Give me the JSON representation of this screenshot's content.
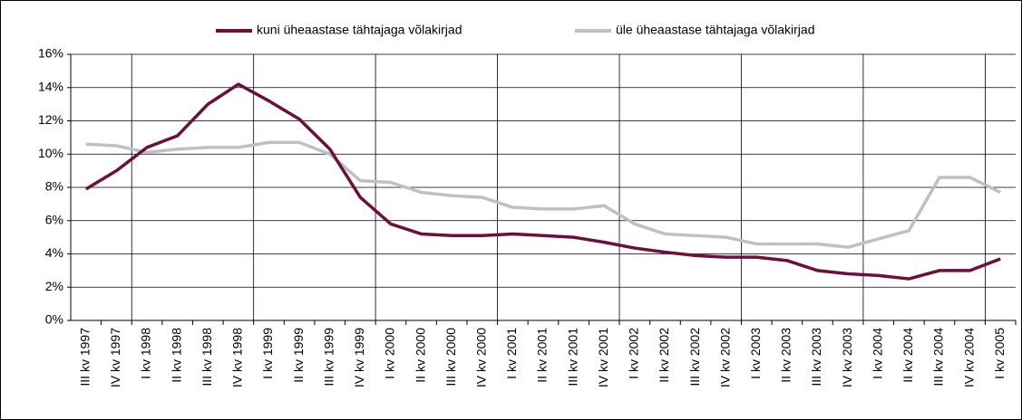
{
  "chart_data": {
    "type": "line",
    "categories": [
      "III kv 1997",
      "IV kv 1997",
      "I kv 1998",
      "II kv 1998",
      "III kv 1998",
      "IV kv 1998",
      "I kv 1999",
      "II kv 1999",
      "III kv 1999",
      "IV kv 1999",
      "I kv 2000",
      "II kv 2000",
      "III kv 2000",
      "IV kv 2000",
      "I kv 2001",
      "II kv 2001",
      "III kv 2001",
      "IV kv 2001",
      "I kv 2002",
      "II kv 2002",
      "III kv 2002",
      "IV kv 2002",
      "I kv 2003",
      "II kv 2003",
      "III kv 2003",
      "IV kv 2003",
      "I kv 2004",
      "II kv 2004",
      "III kv 2004",
      "IV kv 2004",
      "I kv 2005"
    ],
    "series": [
      {
        "name": "kuni üheaastase tähtajaga võlakirjad",
        "color": "#6d0e3b",
        "values": [
          7.9,
          9.0,
          10.4,
          11.1,
          13.0,
          14.2,
          13.2,
          12.1,
          10.3,
          7.4,
          5.8,
          5.2,
          5.1,
          5.1,
          5.2,
          5.1,
          5.0,
          4.7,
          4.35,
          4.1,
          3.9,
          3.8,
          3.8,
          3.6,
          3.0,
          2.8,
          2.7,
          2.5,
          3.0,
          3.0,
          3.7
        ]
      },
      {
        "name": "üle üheaastase tähtajaga võlakirjad",
        "color": "#c0c0c0",
        "values": [
          10.6,
          10.5,
          10.1,
          10.3,
          10.4,
          10.4,
          10.7,
          10.7,
          10.0,
          8.4,
          8.3,
          7.7,
          7.5,
          7.4,
          6.8,
          6.7,
          6.7,
          6.9,
          5.8,
          5.2,
          5.1,
          5.0,
          4.6,
          4.6,
          4.6,
          4.4,
          4.9,
          5.4,
          8.6,
          8.6,
          7.7
        ]
      }
    ],
    "ylim": [
      0,
      16
    ],
    "yticks": [
      {
        "value": 0,
        "label": "0%"
      },
      {
        "value": 2,
        "label": "2%"
      },
      {
        "value": 4,
        "label": "4%"
      },
      {
        "value": 6,
        "label": "6%"
      },
      {
        "value": 8,
        "label": "8%"
      },
      {
        "value": 10,
        "label": "10%"
      },
      {
        "value": 12,
        "label": "12%"
      },
      {
        "value": 14,
        "label": "14%"
      },
      {
        "value": 16,
        "label": "16%"
      }
    ],
    "grid": true,
    "legend": "top"
  }
}
